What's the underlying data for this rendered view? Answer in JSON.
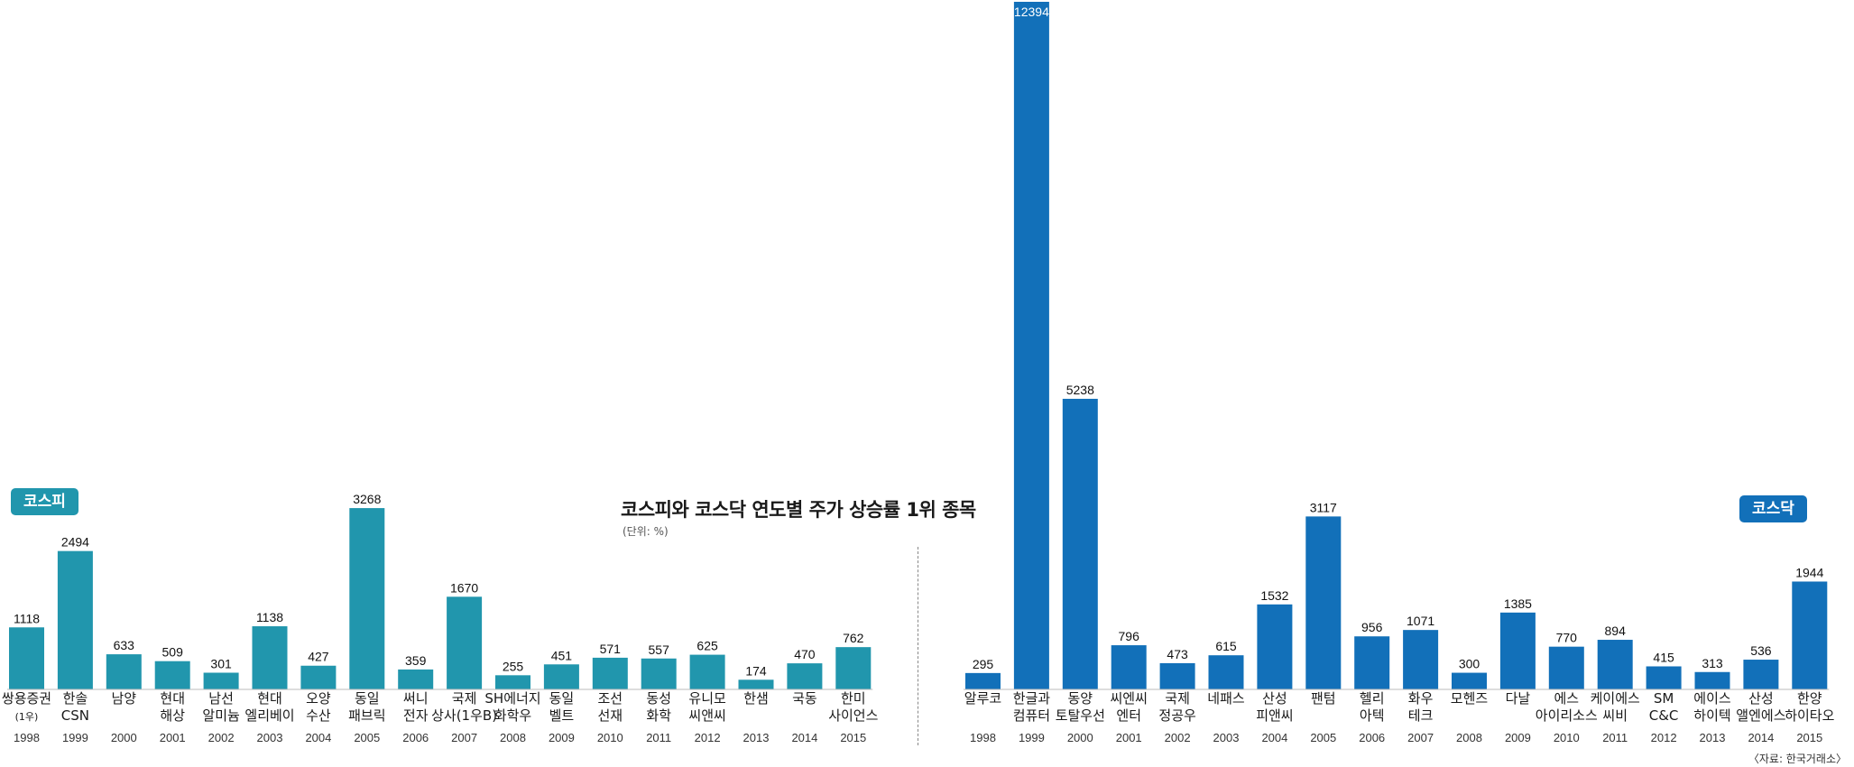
{
  "title": "코스피와 코스닥 연도별 주가 상승률 1위 종목",
  "unit": "(단위: %)",
  "source": "〈자료: 한국거래소〉",
  "colors": {
    "kospi": "#2196ad",
    "kosdaq": "#1270b9"
  },
  "chart_data": [
    {
      "type": "bar",
      "name": "코스피",
      "color": "#2196ad",
      "ylim": [
        0,
        12394
      ],
      "categories": [
        {
          "name": [
            "쌍용증권",
            "(1우)"
          ],
          "year": "1998",
          "value": 1118
        },
        {
          "name": [
            "한솔",
            "CSN"
          ],
          "year": "1999",
          "value": 2494
        },
        {
          "name": [
            "남양"
          ],
          "year": "2000",
          "value": 633
        },
        {
          "name": [
            "현대",
            "해상"
          ],
          "year": "2001",
          "value": 509
        },
        {
          "name": [
            "남선",
            "알미늄"
          ],
          "year": "2002",
          "value": 301
        },
        {
          "name": [
            "현대",
            "엘리베이"
          ],
          "year": "2003",
          "value": 1138
        },
        {
          "name": [
            "오양",
            "수산"
          ],
          "year": "2004",
          "value": 427
        },
        {
          "name": [
            "동일",
            "패브릭"
          ],
          "year": "2005",
          "value": 3268
        },
        {
          "name": [
            "써니",
            "전자"
          ],
          "year": "2006",
          "value": 359
        },
        {
          "name": [
            "국제",
            "상사(1우B)"
          ],
          "year": "2007",
          "value": 1670
        },
        {
          "name": [
            "SH에너지",
            "화학우"
          ],
          "year": "2008",
          "value": 255
        },
        {
          "name": [
            "동일",
            "벨트"
          ],
          "year": "2009",
          "value": 451
        },
        {
          "name": [
            "조선",
            "선재"
          ],
          "year": "2010",
          "value": 571
        },
        {
          "name": [
            "동성",
            "화학"
          ],
          "year": "2011",
          "value": 557
        },
        {
          "name": [
            "유니모",
            "씨앤씨"
          ],
          "year": "2012",
          "value": 625
        },
        {
          "name": [
            "한샘"
          ],
          "year": "2013",
          "value": 174
        },
        {
          "name": [
            "국동"
          ],
          "year": "2014",
          "value": 470
        },
        {
          "name": [
            "한미",
            "사이언스"
          ],
          "year": "2015",
          "value": 762
        }
      ]
    },
    {
      "type": "bar",
      "name": "코스닥",
      "color": "#1270b9",
      "ylim": [
        0,
        12394
      ],
      "categories": [
        {
          "name": [
            "알루코"
          ],
          "year": "1998",
          "value": 295
        },
        {
          "name": [
            "한글과",
            "컴퓨터"
          ],
          "year": "1999",
          "value": 12394
        },
        {
          "name": [
            "동양",
            "토탈우선"
          ],
          "year": "2000",
          "value": 5238
        },
        {
          "name": [
            "씨엔씨",
            "엔터"
          ],
          "year": "2001",
          "value": 796
        },
        {
          "name": [
            "국제",
            "정공우"
          ],
          "year": "2002",
          "value": 473
        },
        {
          "name": [
            "네패스"
          ],
          "year": "2003",
          "value": 615
        },
        {
          "name": [
            "산성",
            "피앤씨"
          ],
          "year": "2004",
          "value": 1532
        },
        {
          "name": [
            "팬텀"
          ],
          "year": "2005",
          "value": 3117
        },
        {
          "name": [
            "헬리",
            "아텍"
          ],
          "year": "2006",
          "value": 956
        },
        {
          "name": [
            "화우",
            "테크"
          ],
          "year": "2007",
          "value": 1071
        },
        {
          "name": [
            "모헨즈"
          ],
          "year": "2008",
          "value": 300
        },
        {
          "name": [
            "다날"
          ],
          "year": "2009",
          "value": 1385
        },
        {
          "name": [
            "에스",
            "아이리소스"
          ],
          "year": "2010",
          "value": 770
        },
        {
          "name": [
            "케이에스",
            "씨비"
          ],
          "year": "2011",
          "value": 894
        },
        {
          "name": [
            "SM",
            "C&C"
          ],
          "year": "2012",
          "value": 415
        },
        {
          "name": [
            "에이스",
            "하이텍"
          ],
          "year": "2013",
          "value": 313
        },
        {
          "name": [
            "산성",
            "앨엔에스"
          ],
          "year": "2014",
          "value": 536
        },
        {
          "name": [
            "한양",
            "하이타오"
          ],
          "year": "2015",
          "value": 1944
        }
      ]
    }
  ]
}
